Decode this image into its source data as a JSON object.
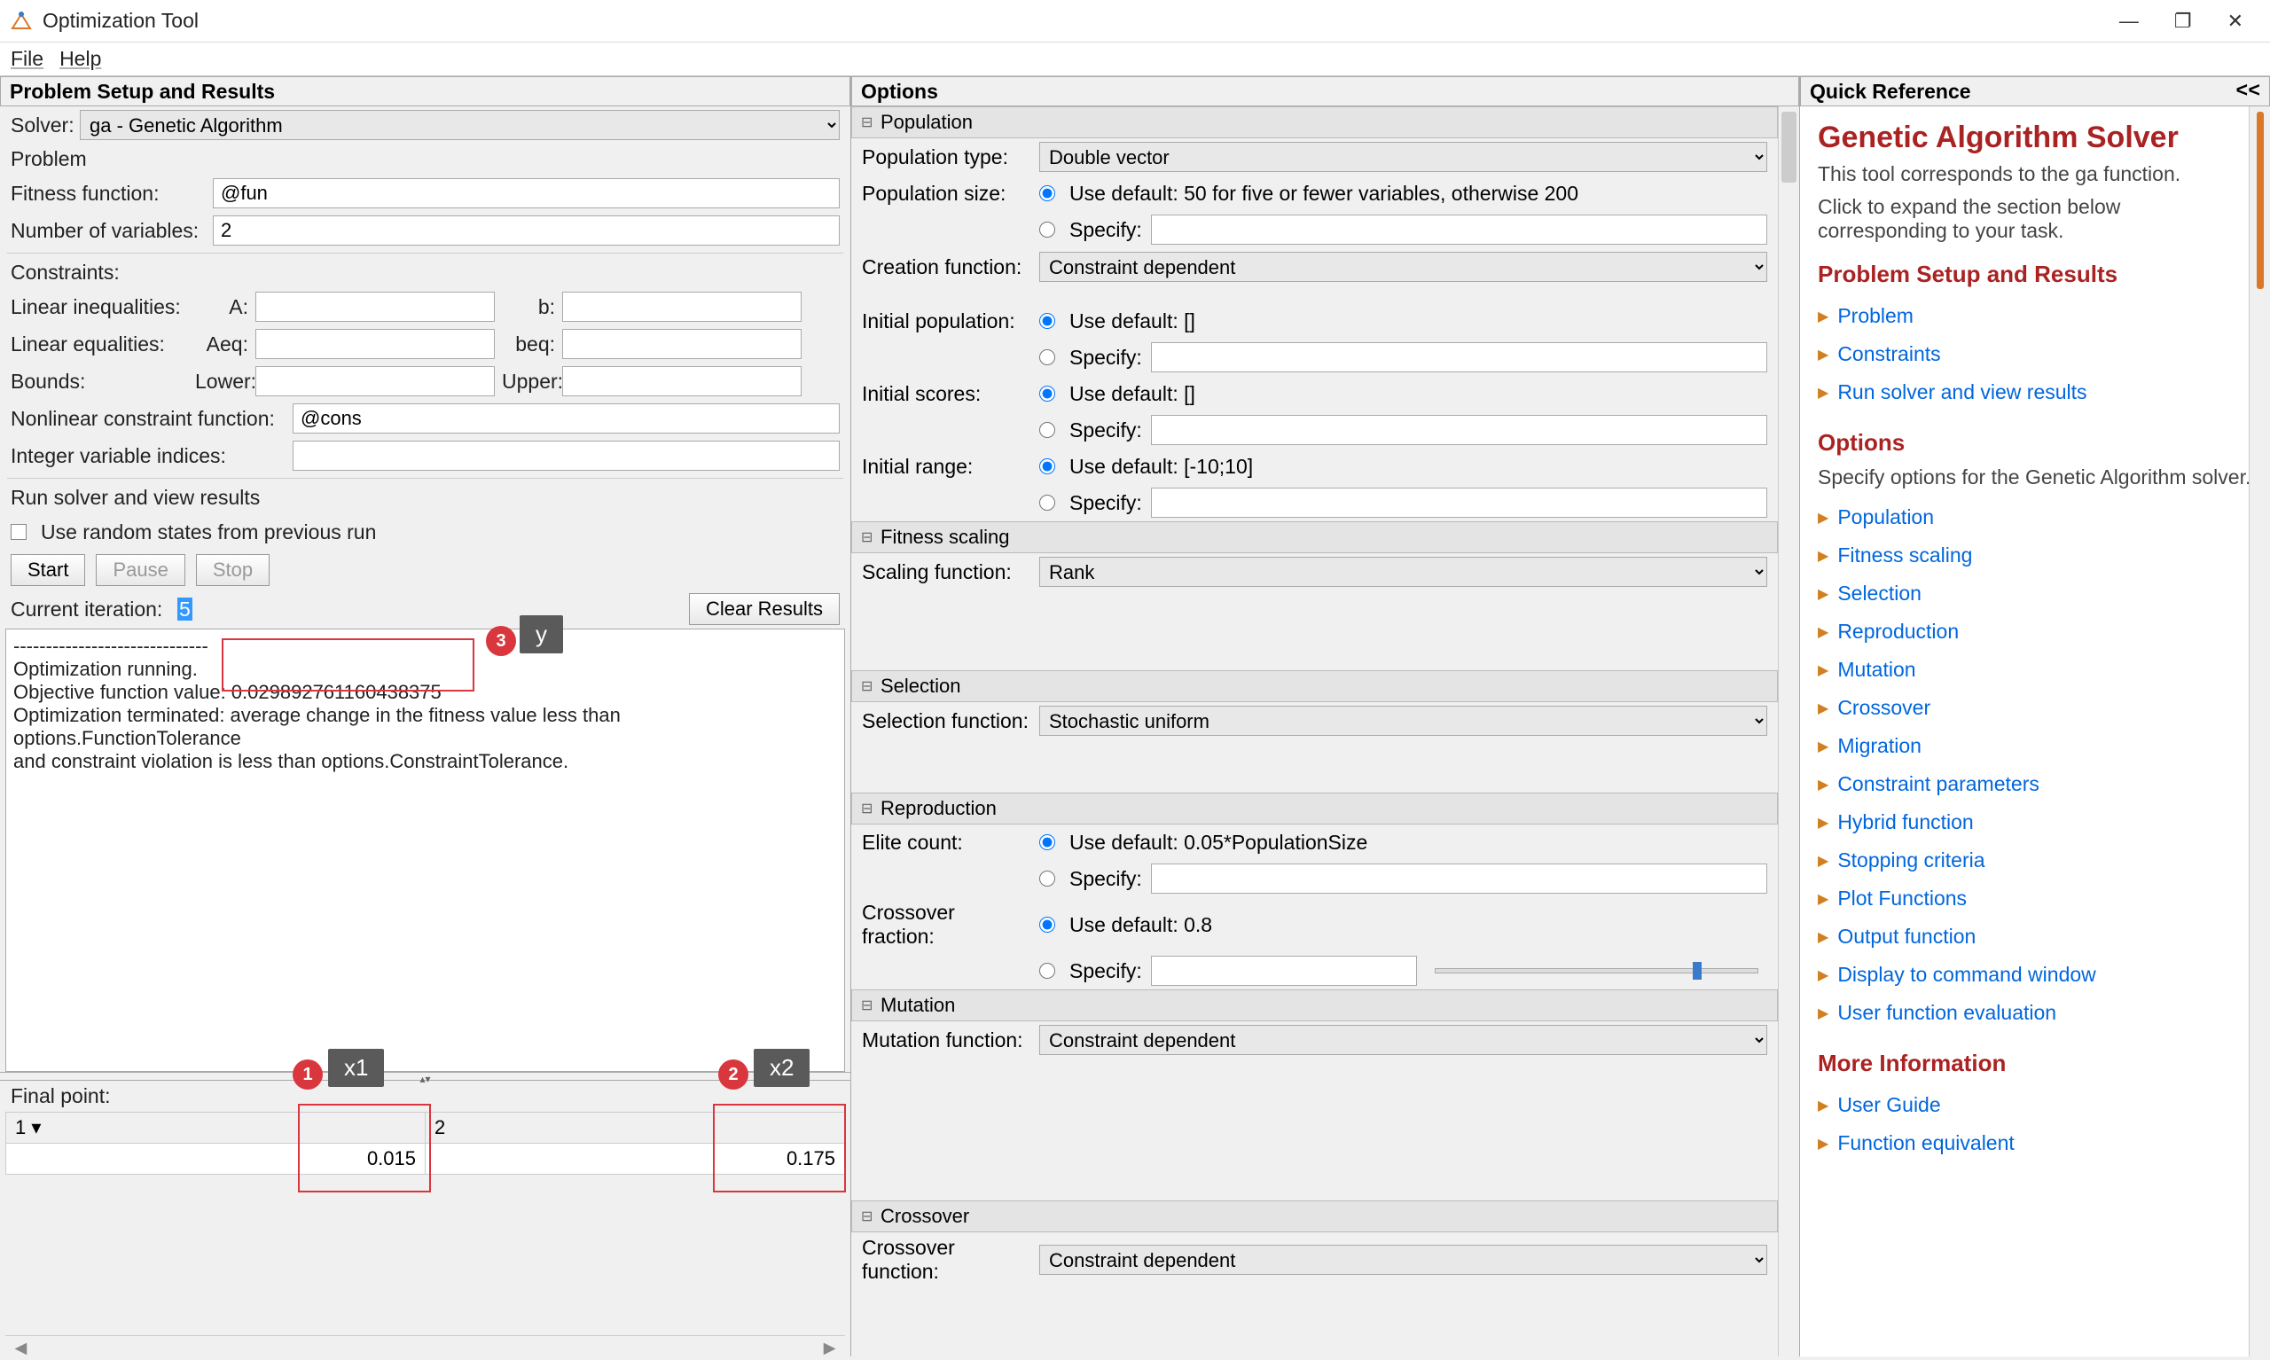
{
  "window": {
    "title": "Optimization Tool",
    "min_icon": "—",
    "max_icon": "❐",
    "close_icon": "✕"
  },
  "menu": {
    "file": "File",
    "help": "Help"
  },
  "left": {
    "header": "Problem Setup and Results",
    "solver_label": "Solver:",
    "solver_value": "ga - Genetic Algorithm",
    "problem_label": "Problem",
    "fitness_label": "Fitness function:",
    "fitness_value": "@fun",
    "nvars_label": "Number of variables:",
    "nvars_value": "2",
    "constraints_label": "Constraints:",
    "linineq_label": "Linear inequalities:",
    "A_label": "A:",
    "A_value": "",
    "b_label": "b:",
    "b_value": "",
    "lineq_label": "Linear equalities:",
    "Aeq_label": "Aeq:",
    "Aeq_value": "",
    "beq_label": "beq:",
    "beq_value": "",
    "bounds_label": "Bounds:",
    "lower_label": "Lower:",
    "lower_value": "",
    "upper_label": "Upper:",
    "upper_value": "",
    "nonlcon_label": "Nonlinear constraint function:",
    "nonlcon_value": "@cons",
    "intcon_label": "Integer variable indices:",
    "intcon_value": "",
    "run_header": "Run solver and view results",
    "random_states_label": "Use random states from previous run",
    "start_btn": "Start",
    "pause_btn": "Pause",
    "stop_btn": "Stop",
    "current_iter_label": "Current iteration:",
    "current_iter_value": "5",
    "clear_results_btn": "Clear Results",
    "output": {
      "sep": "------------------------------",
      "l1": "Optimization running.",
      "l2": "Objective function value: 0.029892761160438375",
      "l3": "Optimization terminated: average change in the fitness value less than",
      "l4": "options.FunctionTolerance",
      "l5": " and constraint violation is less than options.ConstraintTolerance."
    },
    "final_point_label": "Final point:",
    "table": {
      "col1": "1 ▾",
      "col2": "2",
      "v1": "0.015",
      "v2": "0.175"
    }
  },
  "options": {
    "header": "Options",
    "population": {
      "title": "Population",
      "type_label": "Population type:",
      "type_value": "Double vector",
      "size_label": "Population size:",
      "size_default": "Use default: 50 for five or fewer variables, otherwise 200",
      "specify": "Specify:",
      "creation_label": "Creation function:",
      "creation_value": "Constraint dependent",
      "initpop_label": "Initial population:",
      "initpop_default": "Use default: []",
      "initscores_label": "Initial scores:",
      "initscores_default": "Use default: []",
      "initrange_label": "Initial range:",
      "initrange_default": "Use default: [-10;10]"
    },
    "fitness_scaling": {
      "title": "Fitness scaling",
      "label": "Scaling function:",
      "value": "Rank"
    },
    "selection": {
      "title": "Selection",
      "label": "Selection function:",
      "value": "Stochastic uniform"
    },
    "reproduction": {
      "title": "Reproduction",
      "elite_label": "Elite count:",
      "elite_default": "Use default: 0.05*PopulationSize",
      "crossfrac_label": "Crossover fraction:",
      "crossfrac_default": "Use default: 0.8",
      "specify": "Specify:"
    },
    "mutation": {
      "title": "Mutation",
      "label": "Mutation function:",
      "value": "Constraint dependent"
    },
    "crossover": {
      "title": "Crossover",
      "label": "Crossover function:",
      "value": "Constraint dependent"
    }
  },
  "quickref": {
    "header": "Quick Reference",
    "collapse": "<<",
    "title": "Genetic Algorithm Solver",
    "desc": "This tool corresponds to the ga function.",
    "expand_hint": "Click to expand the section below corresponding to your task.",
    "h_setup": "Problem Setup and Results",
    "links_setup": [
      "Problem",
      "Constraints",
      "Run solver and view results"
    ],
    "h_options": "Options",
    "opts_desc": "Specify options for the Genetic Algorithm solver.",
    "links_options": [
      "Population",
      "Fitness scaling",
      "Selection",
      "Reproduction",
      "Mutation",
      "Crossover",
      "Migration",
      "Constraint parameters",
      "Hybrid function",
      "Stopping criteria",
      "Plot Functions",
      "Output function",
      "Display to command window",
      "User function evaluation"
    ],
    "h_more": "More Information",
    "links_more": [
      "User Guide",
      "Function equivalent"
    ]
  },
  "annotations": {
    "a1": "1",
    "a1_label": "x1",
    "a2": "2",
    "a2_label": "x2",
    "a3": "3",
    "a3_label": "y"
  },
  "style": {
    "anno_color": "#d9363e",
    "anno_label_bg": "#5a5a5a",
    "link_color": "#0066dd",
    "heading_color": "#aa2222"
  }
}
